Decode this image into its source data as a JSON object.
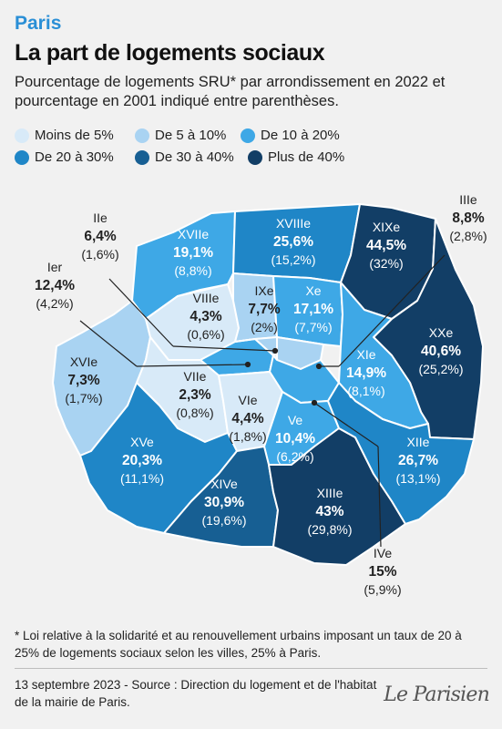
{
  "header": {
    "kicker": "Paris",
    "title": "La part de logements sociaux",
    "subtitle": "Pourcentage de logements SRU* par arrondissement en 2022 et pourcentage en 2001 indiqué entre parenthèses."
  },
  "legend": [
    {
      "label": "Moins de 5%",
      "color": "#d8eaf8"
    },
    {
      "label": "De 5 à 10%",
      "color": "#a9d3f2"
    },
    {
      "label": "De 10 à 20%",
      "color": "#3ea8e6"
    },
    {
      "label": "De 20 à 30%",
      "color": "#1f86c7"
    },
    {
      "label": "De 30 à 40%",
      "color": "#175f93"
    },
    {
      "label": "Plus de 40%",
      "color": "#123e66"
    }
  ],
  "districts": [
    {
      "id": "I",
      "name": "Ier",
      "value_2022": "12,4%",
      "value_2001": "(4,2%)",
      "color": "#3ea8e6"
    },
    {
      "id": "II",
      "name": "IIe",
      "value_2022": "6,4%",
      "value_2001": "(1,6%)",
      "color": "#a9d3f2"
    },
    {
      "id": "III",
      "name": "IIIe",
      "value_2022": "8,8%",
      "value_2001": "(2,8%)",
      "color": "#a9d3f2"
    },
    {
      "id": "IV",
      "name": "IVe",
      "value_2022": "15%",
      "value_2001": "(5,9%)",
      "color": "#3ea8e6"
    },
    {
      "id": "V",
      "name": "Ve",
      "value_2022": "10,4%",
      "value_2001": "(6,2%)",
      "color": "#3ea8e6"
    },
    {
      "id": "VI",
      "name": "VIe",
      "value_2022": "4,4%",
      "value_2001": "(1,8%)",
      "color": "#d8eaf8"
    },
    {
      "id": "VII",
      "name": "VIIe",
      "value_2022": "2,3%",
      "value_2001": "(0,8%)",
      "color": "#d8eaf8"
    },
    {
      "id": "VIII",
      "name": "VIIIe",
      "value_2022": "4,3%",
      "value_2001": "(0,6%)",
      "color": "#d8eaf8"
    },
    {
      "id": "IX",
      "name": "IXe",
      "value_2022": "7,7%",
      "value_2001": "(2%)",
      "color": "#a9d3f2"
    },
    {
      "id": "X",
      "name": "Xe",
      "value_2022": "17,1%",
      "value_2001": "(7,7%)",
      "color": "#3ea8e6"
    },
    {
      "id": "XI",
      "name": "XIe",
      "value_2022": "14,9%",
      "value_2001": "(8,1%)",
      "color": "#3ea8e6"
    },
    {
      "id": "XII",
      "name": "XIIe",
      "value_2022": "26,7%",
      "value_2001": "(13,1%)",
      "color": "#1f86c7"
    },
    {
      "id": "XIII",
      "name": "XIIIe",
      "value_2022": "43%",
      "value_2001": "(29,8%)",
      "color": "#123e66"
    },
    {
      "id": "XIV",
      "name": "XIVe",
      "value_2022": "30,9%",
      "value_2001": "(19,6%)",
      "color": "#175f93"
    },
    {
      "id": "XV",
      "name": "XVe",
      "value_2022": "20,3%",
      "value_2001": "(11,1%)",
      "color": "#1f86c7"
    },
    {
      "id": "XVI",
      "name": "XVIe",
      "value_2022": "7,3%",
      "value_2001": "(1,7%)",
      "color": "#a9d3f2"
    },
    {
      "id": "XVII",
      "name": "XVIIe",
      "value_2022": "19,1%",
      "value_2001": "(8,8%)",
      "color": "#3ea8e6"
    },
    {
      "id": "XVIII",
      "name": "XVIIIe",
      "value_2022": "25,6%",
      "value_2001": "(15,2%)",
      "color": "#1f86c7"
    },
    {
      "id": "XIX",
      "name": "XIXe",
      "value_2022": "44,5%",
      "value_2001": "(32%)",
      "color": "#123e66"
    },
    {
      "id": "XX",
      "name": "XXe",
      "value_2022": "40,6%",
      "value_2001": "(25,2%)",
      "color": "#123e66"
    }
  ],
  "footnote": "* Loi relative à la solidarité et au renouvellement urbains imposant un taux de 20 à 25% de logements sociaux selon les villes, 25% à Paris.",
  "source": "13 septembre 2023 - Source : Direction du logement et de l'habitat de la mairie de Paris.",
  "logo": "Le Parisien"
}
